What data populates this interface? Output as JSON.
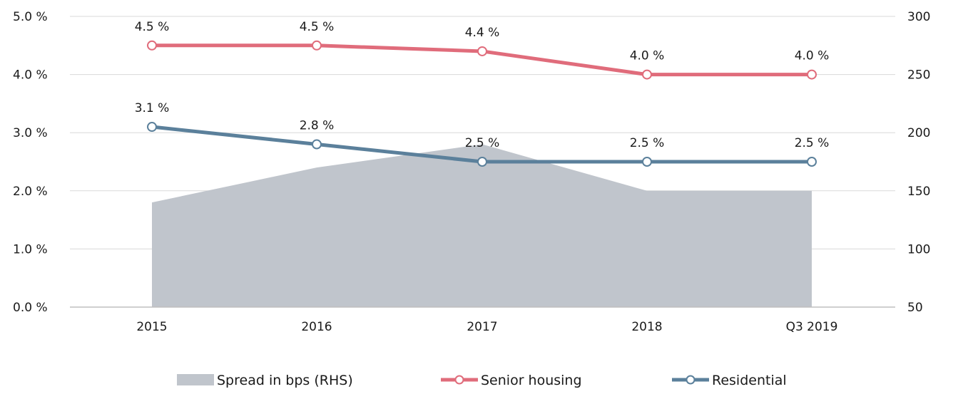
{
  "chart_data": {
    "type": "line",
    "categories": [
      "2015",
      "2016",
      "2017",
      "2018",
      "Q3 2019"
    ],
    "y_left": {
      "ticks": [
        "0.0 %",
        "1.0 %",
        "2.0 %",
        "3.0 %",
        "4.0 %",
        "5.0 %"
      ],
      "ylim": [
        0,
        5
      ]
    },
    "y_right": {
      "ticks": [
        "50",
        "100",
        "150",
        "200",
        "250",
        "300"
      ],
      "ylim": [
        50,
        300
      ]
    },
    "series": [
      {
        "name": "Spread in bps (RHS)",
        "type": "area",
        "axis": "right",
        "color": "#c0c5cc",
        "values": [
          140,
          170,
          190,
          150,
          150
        ],
        "labels": []
      },
      {
        "name": "Senior housing",
        "type": "line",
        "axis": "left",
        "color": "#e06c7b",
        "values": [
          4.5,
          4.5,
          4.4,
          4.0,
          4.0
        ],
        "labels": [
          "4.5 %",
          "4.5 %",
          "4.4 %",
          "4.0 %",
          "4.0 %"
        ]
      },
      {
        "name": "Residential",
        "type": "line",
        "axis": "left",
        "color": "#5b809b",
        "values": [
          3.1,
          2.8,
          2.5,
          2.5,
          2.5
        ],
        "labels": [
          "3.1 %",
          "2.8 %",
          "2.5 %",
          "2.5 %",
          "2.5 %"
        ]
      }
    ],
    "grid": true,
    "legend_position": "bottom"
  }
}
